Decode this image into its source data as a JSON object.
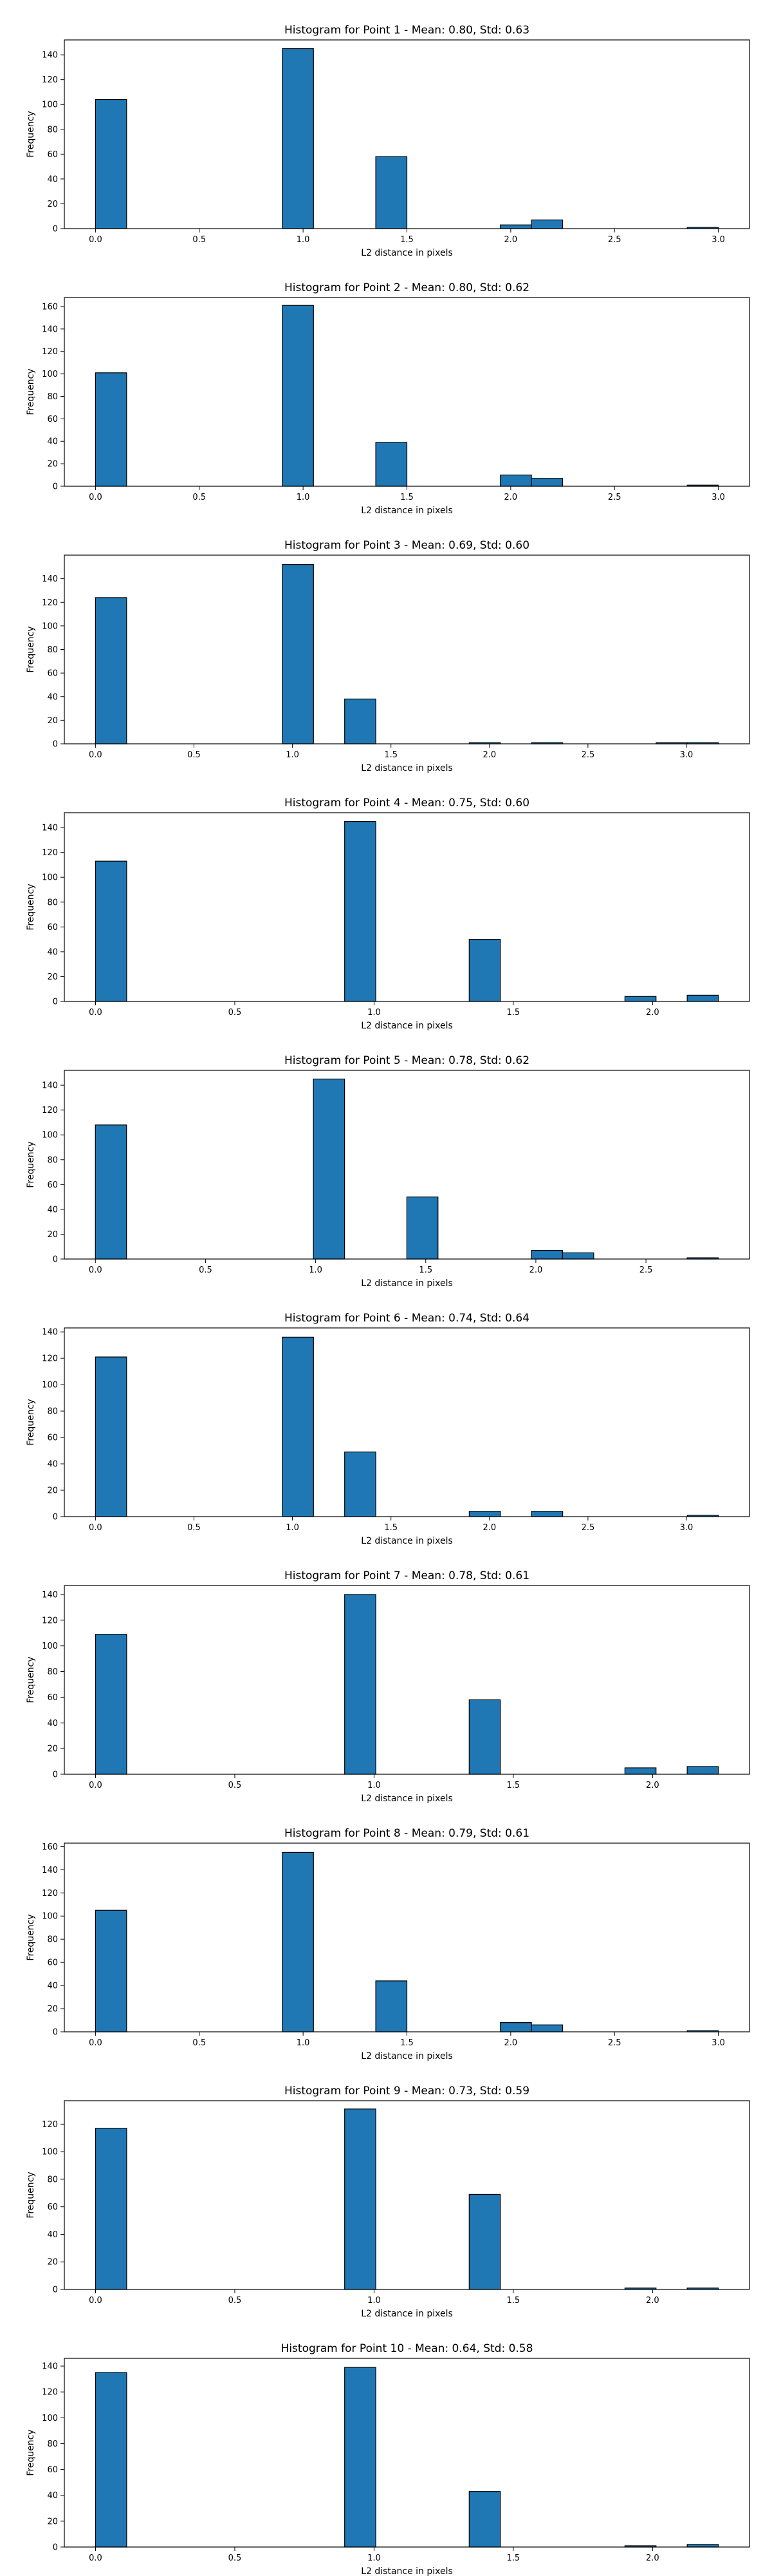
{
  "chart_data": [
    {
      "type": "bar",
      "title": "Histogram for Point 1 - Mean: 0.80, Std: 0.63",
      "xlabel": "L2 distance in pixels",
      "ylabel": "Frequency",
      "bin_edges": [
        0.0,
        0.15,
        0.3,
        0.45,
        0.6,
        0.75,
        0.9,
        1.05,
        1.2,
        1.35,
        1.5,
        1.65,
        1.8,
        1.95,
        2.1,
        2.25,
        2.4,
        2.55,
        2.7,
        2.85,
        3.0
      ],
      "values": [
        104,
        0,
        0,
        0,
        0,
        0,
        145,
        0,
        0,
        58,
        0,
        0,
        0,
        3,
        7,
        0,
        0,
        0,
        0,
        1
      ],
      "xlim": [
        -0.15,
        3.15
      ],
      "ylim": [
        0,
        152
      ],
      "xticks": [
        0.0,
        0.5,
        1.0,
        1.5,
        2.0,
        2.5,
        3.0
      ],
      "xtick_labels": [
        "0.0",
        "0.5",
        "1.0",
        "1.5",
        "2.0",
        "2.5",
        "3.0"
      ],
      "yticks": [
        0,
        20,
        40,
        60,
        80,
        100,
        120,
        140
      ],
      "ytick_labels": [
        "0",
        "20",
        "40",
        "60",
        "80",
        "100",
        "120",
        "140"
      ],
      "bar_color": "#1f77b4"
    },
    {
      "type": "bar",
      "title": "Histogram for Point 2 - Mean: 0.80, Std: 0.62",
      "xlabel": "L2 distance in pixels",
      "ylabel": "Frequency",
      "bin_edges": [
        0.0,
        0.15,
        0.3,
        0.45,
        0.6,
        0.75,
        0.9,
        1.05,
        1.2,
        1.35,
        1.5,
        1.65,
        1.8,
        1.95,
        2.1,
        2.25,
        2.4,
        2.55,
        2.7,
        2.85,
        3.0
      ],
      "values": [
        101,
        0,
        0,
        0,
        0,
        0,
        161,
        0,
        0,
        39,
        0,
        0,
        0,
        10,
        7,
        0,
        0,
        0,
        0,
        1
      ],
      "xlim": [
        -0.15,
        3.15
      ],
      "ylim": [
        0,
        168
      ],
      "xticks": [
        0.0,
        0.5,
        1.0,
        1.5,
        2.0,
        2.5,
        3.0
      ],
      "xtick_labels": [
        "0.0",
        "0.5",
        "1.0",
        "1.5",
        "2.0",
        "2.5",
        "3.0"
      ],
      "yticks": [
        0,
        20,
        40,
        60,
        80,
        100,
        120,
        140,
        160
      ],
      "ytick_labels": [
        "0",
        "20",
        "40",
        "60",
        "80",
        "100",
        "120",
        "140",
        "160"
      ],
      "bar_color": "#1f77b4"
    },
    {
      "type": "bar",
      "title": "Histogram for Point 3 - Mean: 0.69, Std: 0.60",
      "xlabel": "L2 distance in pixels",
      "ylabel": "Frequency",
      "bin_edges": [
        0.0,
        0.1581,
        0.3162,
        0.4743,
        0.6325,
        0.7906,
        0.9487,
        1.1068,
        1.2649,
        1.423,
        1.5811,
        1.7392,
        1.8974,
        2.0555,
        2.2136,
        2.3717,
        2.5298,
        2.6879,
        2.846,
        3.0042,
        3.1623
      ],
      "values": [
        124,
        0,
        0,
        0,
        0,
        0,
        152,
        0,
        38,
        0,
        0,
        0,
        1,
        0,
        1,
        0,
        0,
        0,
        1,
        1
      ],
      "xlim": [
        -0.158,
        3.32
      ],
      "ylim": [
        0,
        160
      ],
      "xticks": [
        0.0,
        0.5,
        1.0,
        1.5,
        2.0,
        2.5,
        3.0
      ],
      "xtick_labels": [
        "0.0",
        "0.5",
        "1.0",
        "1.5",
        "2.0",
        "2.5",
        "3.0"
      ],
      "yticks": [
        0,
        20,
        40,
        60,
        80,
        100,
        120,
        140
      ],
      "ytick_labels": [
        "0",
        "20",
        "40",
        "60",
        "80",
        "100",
        "120",
        "140"
      ],
      "bar_color": "#1f77b4"
    },
    {
      "type": "bar",
      "title": "Histogram for Point 4 - Mean: 0.75, Std: 0.60",
      "xlabel": "L2 distance in pixels",
      "ylabel": "Frequency",
      "bin_edges": [
        0.0,
        0.1118,
        0.2236,
        0.3354,
        0.4472,
        0.559,
        0.6708,
        0.7826,
        0.8944,
        1.0062,
        1.118,
        1.2298,
        1.3416,
        1.4534,
        1.5652,
        1.677,
        1.7889,
        1.9007,
        2.0125,
        2.1243,
        2.2361
      ],
      "values": [
        113,
        0,
        0,
        0,
        0,
        0,
        0,
        0,
        145,
        0,
        0,
        0,
        50,
        0,
        0,
        0,
        0,
        4,
        0,
        5
      ],
      "xlim": [
        -0.112,
        2.348
      ],
      "ylim": [
        0,
        152
      ],
      "xticks": [
        0.0,
        0.5,
        1.0,
        1.5,
        2.0
      ],
      "xtick_labels": [
        "0.0",
        "0.5",
        "1.0",
        "1.5",
        "2.0"
      ],
      "yticks": [
        0,
        20,
        40,
        60,
        80,
        100,
        120,
        140
      ],
      "ytick_labels": [
        "0",
        "20",
        "40",
        "60",
        "80",
        "100",
        "120",
        "140"
      ],
      "bar_color": "#1f77b4"
    },
    {
      "type": "bar",
      "title": "Histogram for Point 5 - Mean: 0.78, Std: 0.62",
      "xlabel": "L2 distance in pixels",
      "ylabel": "Frequency",
      "bin_edges": [
        0.0,
        0.1414,
        0.2828,
        0.4243,
        0.5657,
        0.7071,
        0.8485,
        0.9899,
        1.1314,
        1.2728,
        1.4142,
        1.5556,
        1.6971,
        1.8385,
        1.9799,
        2.1213,
        2.2627,
        2.4042,
        2.5456,
        2.687,
        2.8284
      ],
      "values": [
        108,
        0,
        0,
        0,
        0,
        0,
        0,
        145,
        0,
        0,
        50,
        0,
        0,
        0,
        7,
        5,
        0,
        0,
        0,
        1
      ],
      "xlim": [
        -0.141,
        2.97
      ],
      "ylim": [
        0,
        152
      ],
      "xticks": [
        0.0,
        0.5,
        1.0,
        1.5,
        2.0,
        2.5
      ],
      "xtick_labels": [
        "0.0",
        "0.5",
        "1.0",
        "1.5",
        "2.0",
        "2.5"
      ],
      "yticks": [
        0,
        20,
        40,
        60,
        80,
        100,
        120,
        140
      ],
      "ytick_labels": [
        "0",
        "20",
        "40",
        "60",
        "80",
        "100",
        "120",
        "140"
      ],
      "bar_color": "#1f77b4"
    },
    {
      "type": "bar",
      "title": "Histogram for Point 6 - Mean: 0.74, Std: 0.64",
      "xlabel": "L2 distance in pixels",
      "ylabel": "Frequency",
      "bin_edges": [
        0.0,
        0.1581,
        0.3162,
        0.4743,
        0.6325,
        0.7906,
        0.9487,
        1.1068,
        1.2649,
        1.423,
        1.5811,
        1.7392,
        1.8974,
        2.0555,
        2.2136,
        2.3717,
        2.5298,
        2.6879,
        2.846,
        3.0042,
        3.1623
      ],
      "values": [
        121,
        0,
        0,
        0,
        0,
        0,
        136,
        0,
        49,
        0,
        0,
        0,
        4,
        0,
        4,
        0,
        0,
        0,
        0,
        1
      ],
      "xlim": [
        -0.158,
        3.32
      ],
      "ylim": [
        0,
        143
      ],
      "xticks": [
        0.0,
        0.5,
        1.0,
        1.5,
        2.0,
        2.5,
        3.0
      ],
      "xtick_labels": [
        "0.0",
        "0.5",
        "1.0",
        "1.5",
        "2.0",
        "2.5",
        "3.0"
      ],
      "yticks": [
        0,
        20,
        40,
        60,
        80,
        100,
        120,
        140
      ],
      "ytick_labels": [
        "0",
        "20",
        "40",
        "60",
        "80",
        "100",
        "120",
        "140"
      ],
      "bar_color": "#1f77b4"
    },
    {
      "type": "bar",
      "title": "Histogram for Point 7 - Mean: 0.78, Std: 0.61",
      "xlabel": "L2 distance in pixels",
      "ylabel": "Frequency",
      "bin_edges": [
        0.0,
        0.1118,
        0.2236,
        0.3354,
        0.4472,
        0.559,
        0.6708,
        0.7826,
        0.8944,
        1.0062,
        1.118,
        1.2298,
        1.3416,
        1.4534,
        1.5652,
        1.677,
        1.7889,
        1.9007,
        2.0125,
        2.1243,
        2.2361
      ],
      "values": [
        109,
        0,
        0,
        0,
        0,
        0,
        0,
        0,
        140,
        0,
        0,
        0,
        58,
        0,
        0,
        0,
        0,
        5,
        0,
        6
      ],
      "xlim": [
        -0.112,
        2.348
      ],
      "ylim": [
        0,
        147
      ],
      "xticks": [
        0.0,
        0.5,
        1.0,
        1.5,
        2.0
      ],
      "xtick_labels": [
        "0.0",
        "0.5",
        "1.0",
        "1.5",
        "2.0"
      ],
      "yticks": [
        0,
        20,
        40,
        60,
        80,
        100,
        120,
        140
      ],
      "ytick_labels": [
        "0",
        "20",
        "40",
        "60",
        "80",
        "100",
        "120",
        "140"
      ],
      "bar_color": "#1f77b4"
    },
    {
      "type": "bar",
      "title": "Histogram for Point 8 - Mean: 0.79, Std: 0.61",
      "xlabel": "L2 distance in pixels",
      "ylabel": "Frequency",
      "bin_edges": [
        0.0,
        0.15,
        0.3,
        0.45,
        0.6,
        0.75,
        0.9,
        1.05,
        1.2,
        1.35,
        1.5,
        1.65,
        1.8,
        1.95,
        2.1,
        2.25,
        2.4,
        2.55,
        2.7,
        2.85,
        3.0
      ],
      "values": [
        105,
        0,
        0,
        0,
        0,
        0,
        155,
        0,
        0,
        44,
        0,
        0,
        0,
        8,
        6,
        0,
        0,
        0,
        0,
        1
      ],
      "xlim": [
        -0.15,
        3.15
      ],
      "ylim": [
        0,
        163
      ],
      "xticks": [
        0.0,
        0.5,
        1.0,
        1.5,
        2.0,
        2.5,
        3.0
      ],
      "xtick_labels": [
        "0.0",
        "0.5",
        "1.0",
        "1.5",
        "2.0",
        "2.5",
        "3.0"
      ],
      "yticks": [
        0,
        20,
        40,
        60,
        80,
        100,
        120,
        140,
        160
      ],
      "ytick_labels": [
        "0",
        "20",
        "40",
        "60",
        "80",
        "100",
        "120",
        "140",
        "160"
      ],
      "bar_color": "#1f77b4"
    },
    {
      "type": "bar",
      "title": "Histogram for Point 9 - Mean: 0.73, Std: 0.59",
      "xlabel": "L2 distance in pixels",
      "ylabel": "Frequency",
      "bin_edges": [
        0.0,
        0.1118,
        0.2236,
        0.3354,
        0.4472,
        0.559,
        0.6708,
        0.7826,
        0.8944,
        1.0062,
        1.118,
        1.2298,
        1.3416,
        1.4534,
        1.5652,
        1.677,
        1.7889,
        1.9007,
        2.0125,
        2.1243,
        2.2361
      ],
      "values": [
        117,
        0,
        0,
        0,
        0,
        0,
        0,
        0,
        131,
        0,
        0,
        0,
        69,
        0,
        0,
        0,
        0,
        1,
        0,
        1
      ],
      "xlim": [
        -0.112,
        2.348
      ],
      "ylim": [
        0,
        137
      ],
      "xticks": [
        0.0,
        0.5,
        1.0,
        1.5,
        2.0
      ],
      "xtick_labels": [
        "0.0",
        "0.5",
        "1.0",
        "1.5",
        "2.0"
      ],
      "yticks": [
        0,
        20,
        40,
        60,
        80,
        100,
        120
      ],
      "ytick_labels": [
        "0",
        "20",
        "40",
        "60",
        "80",
        "100",
        "120"
      ],
      "bar_color": "#1f77b4"
    },
    {
      "type": "bar",
      "title": "Histogram for Point 10 - Mean: 0.64, Std: 0.58",
      "xlabel": "L2 distance in pixels",
      "ylabel": "Frequency",
      "bin_edges": [
        0.0,
        0.1118,
        0.2236,
        0.3354,
        0.4472,
        0.559,
        0.6708,
        0.7826,
        0.8944,
        1.0062,
        1.118,
        1.2298,
        1.3416,
        1.4534,
        1.5652,
        1.677,
        1.7889,
        1.9007,
        2.0125,
        2.1243,
        2.2361
      ],
      "values": [
        135,
        0,
        0,
        0,
        0,
        0,
        0,
        0,
        139,
        0,
        0,
        0,
        43,
        0,
        0,
        0,
        0,
        1,
        0,
        2
      ],
      "xlim": [
        -0.112,
        2.348
      ],
      "ylim": [
        0,
        146
      ],
      "xticks": [
        0.0,
        0.5,
        1.0,
        1.5,
        2.0
      ],
      "xtick_labels": [
        "0.0",
        "0.5",
        "1.0",
        "1.5",
        "2.0"
      ],
      "yticks": [
        0,
        20,
        40,
        60,
        80,
        100,
        120,
        140
      ],
      "ytick_labels": [
        "0",
        "20",
        "40",
        "60",
        "80",
        "100",
        "120",
        "140"
      ],
      "bar_color": "#1f77b4"
    }
  ]
}
